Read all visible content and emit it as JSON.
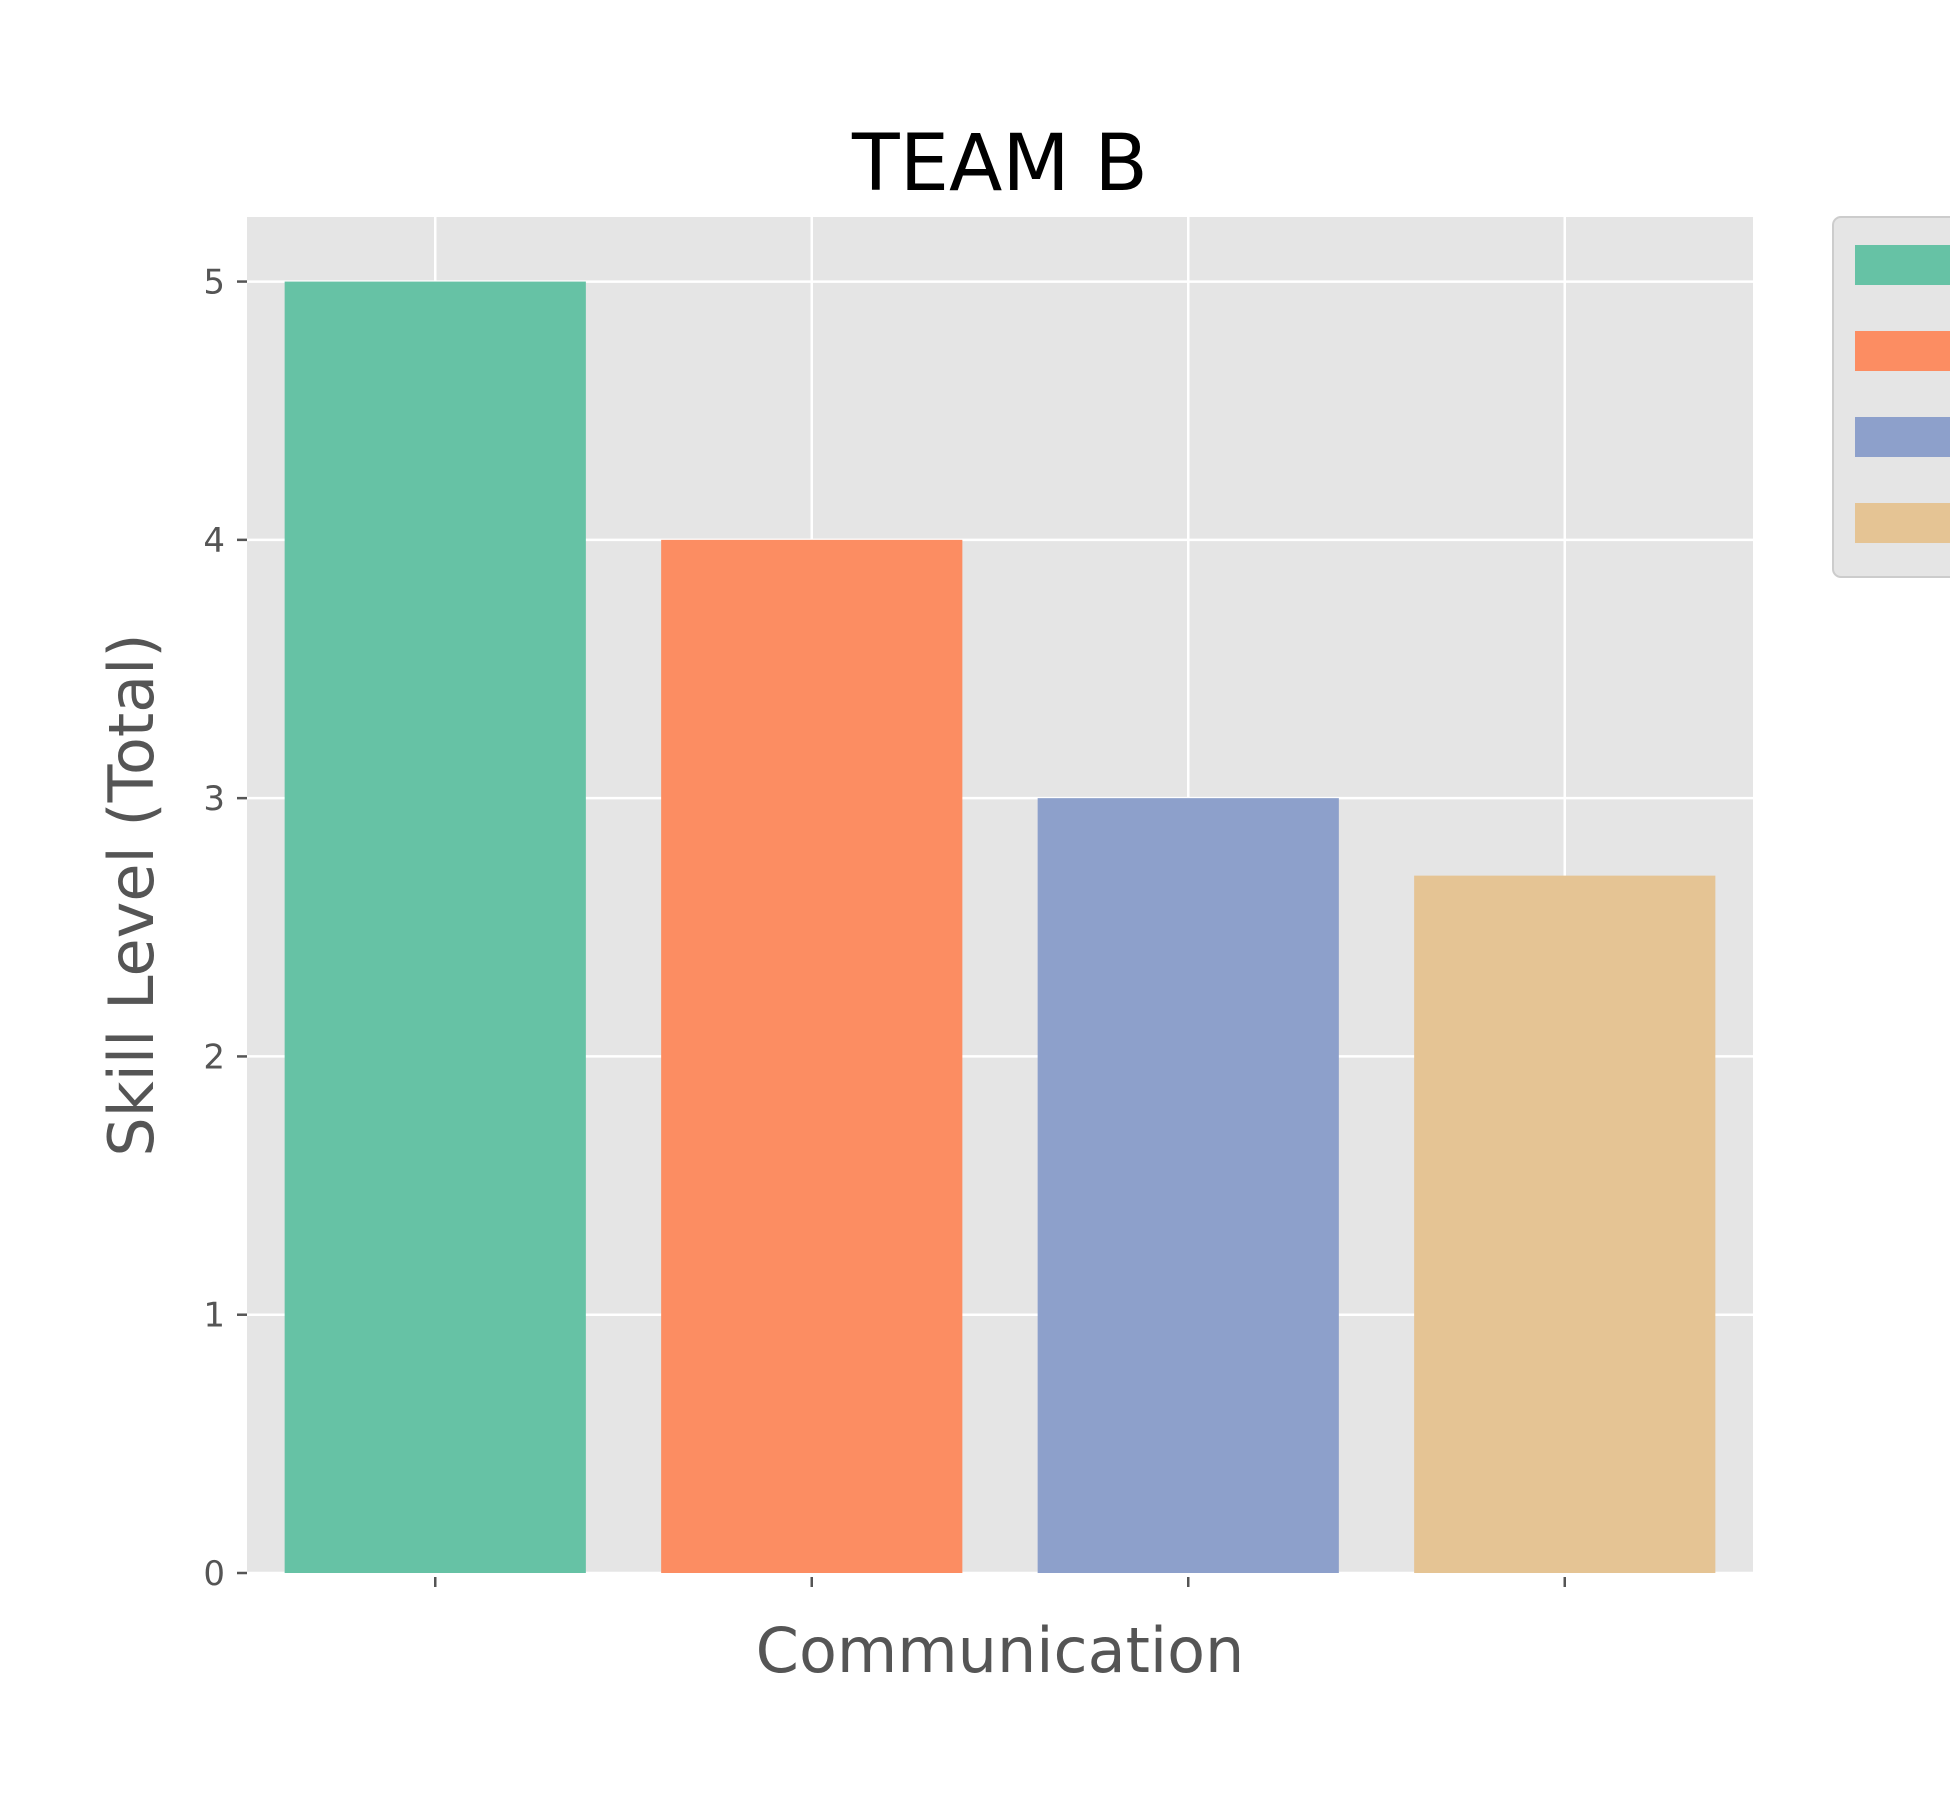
{
  "chart_data": {
    "type": "bar",
    "title": "TEAM B",
    "xlabel": "Communication",
    "ylabel": "Skill Level (Total)",
    "ylim": [
      0,
      5.25
    ],
    "yticks": [
      0,
      1,
      2,
      3,
      4,
      5
    ],
    "grid": true,
    "legend_position": "outside-top-right",
    "series": [
      {
        "values": [
          5.0
        ],
        "color": "#66c2a5"
      },
      {
        "values": [
          4.0
        ],
        "color": "#fc8d62"
      },
      {
        "values": [
          3.0
        ],
        "color": "#8da0cb"
      },
      {
        "values": [
          2.7
        ],
        "color": "#e5c494"
      }
    ],
    "colors": {
      "plot_background": "#e5e5e5",
      "grid": "#ffffff",
      "tick": "#555555"
    }
  }
}
